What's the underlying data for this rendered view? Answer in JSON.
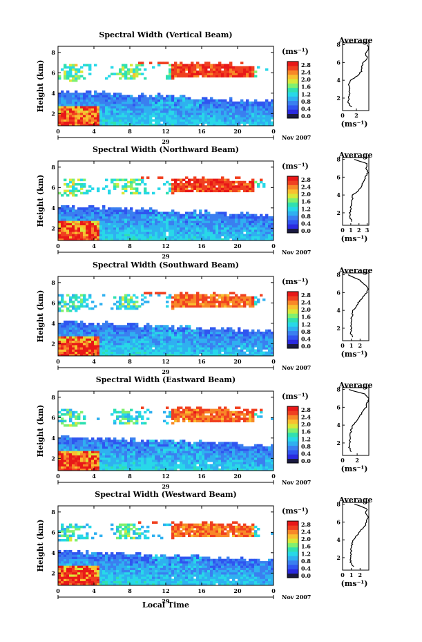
{
  "chart_data": {
    "type": "heatmap",
    "figure_xlabel": "Local Time",
    "colorbar": {
      "colors": [
        "#1a1a40",
        "#2a2ae0",
        "#2f55f0",
        "#3a7ff0",
        "#2fb0f0",
        "#28d8e8",
        "#30e0b0",
        "#80f070",
        "#d8e83a",
        "#f8c030",
        "#f88828",
        "#f04020",
        "#e81818"
      ]
    },
    "units_label": "(ms⁻¹)",
    "date_day": "29",
    "date_label": "Nov 2007",
    "x_ticks": [
      "0",
      "4",
      "8",
      "12",
      "16",
      "20",
      "0"
    ],
    "y_ticks": [
      "2",
      "4",
      "6",
      "8"
    ],
    "ylabel": "Height (km)",
    "avg_title": "Average",
    "avg_ylabel": "",
    "avg_xunit": "(ms⁻¹)",
    "panels": [
      {
        "title": "Spectral Width (Vertical Beam)",
        "colorbar_ticks": [
          "2.8",
          "2.4",
          "2.0",
          "1.6",
          "1.2",
          "0.8",
          "0.4",
          "0.0"
        ],
        "avg_x_ticks": [
          "0",
          "2"
        ],
        "avg_xlim": [
          0,
          3.8
        ],
        "avg_profile": {
          "height": [
            1.0,
            1.5,
            2.0,
            2.5,
            3.0,
            3.5,
            4.0,
            4.5,
            5.0,
            5.5,
            6.0,
            6.5,
            7.0,
            7.5,
            8.0
          ],
          "value": [
            1.3,
            0.8,
            0.9,
            1.0,
            1.0,
            0.9,
            1.1,
            2.2,
            2.7,
            2.8,
            3.0,
            3.6,
            3.3,
            3.8,
            3.6
          ]
        }
      },
      {
        "title": "Spectral Width (Northward Beam)",
        "colorbar_ticks": [
          "2.8",
          "2.4",
          "2.0",
          "1.6",
          "1.2",
          "0.8",
          "0.4",
          "0.0"
        ],
        "avg_x_ticks": [
          "0",
          "1",
          "2",
          "3"
        ],
        "avg_xlim": [
          0,
          3.2
        ],
        "avg_profile": {
          "height": [
            1.0,
            1.5,
            2.0,
            2.5,
            3.0,
            3.5,
            4.0,
            4.5,
            5.0,
            5.5,
            6.0,
            6.5,
            7.0,
            7.5,
            8.0
          ],
          "value": [
            1.1,
            0.9,
            0.9,
            1.0,
            1.1,
            1.2,
            1.2,
            2.0,
            2.3,
            2.6,
            2.8,
            3.1,
            2.9,
            3.0,
            1.4
          ]
        }
      },
      {
        "title": "Spectral Width (Southward Beam)",
        "colorbar_ticks": [
          "2.8",
          "2.4",
          "2.0",
          "1.6",
          "1.2",
          "0.8",
          "0.4",
          "0.0"
        ],
        "avg_x_ticks": [
          "0",
          "1",
          "2"
        ],
        "avg_xlim": [
          0,
          3.0
        ],
        "avg_profile": {
          "height": [
            1.0,
            1.5,
            2.0,
            2.5,
            3.0,
            3.5,
            4.0,
            4.5,
            5.0,
            5.5,
            6.0,
            6.5,
            7.0,
            7.5,
            8.0
          ],
          "value": [
            1.1,
            0.9,
            1.0,
            1.0,
            1.0,
            1.1,
            1.2,
            1.6,
            1.9,
            2.3,
            2.8,
            2.9,
            2.4,
            1.8,
            0.6
          ]
        }
      },
      {
        "title": "Spectral Width (Eastward Beam)",
        "colorbar_ticks": [
          "2.8",
          "2.4",
          "2.0",
          "1.6",
          "1.2",
          "0.8",
          "0.4",
          "0.0"
        ],
        "avg_x_ticks": [
          "0",
          "2"
        ],
        "avg_xlim": [
          0,
          3.6
        ],
        "avg_profile": {
          "height": [
            1.0,
            1.5,
            2.0,
            2.5,
            3.0,
            3.5,
            4.0,
            4.5,
            5.0,
            5.5,
            6.0,
            6.5,
            7.0,
            7.5,
            8.0
          ],
          "value": [
            1.2,
            0.9,
            1.0,
            1.0,
            1.1,
            1.2,
            1.4,
            2.0,
            2.3,
            2.8,
            3.2,
            3.4,
            3.6,
            3.1,
            0.8
          ]
        }
      },
      {
        "title": "Spectral Width (Westward Beam)",
        "colorbar_ticks": [
          "2.8",
          "2.4",
          "2.0",
          "1.6",
          "1.2",
          "0.8",
          "0.4",
          "0.0"
        ],
        "avg_x_ticks": [
          "0",
          "1",
          "2"
        ],
        "avg_xlim": [
          0,
          3.0
        ],
        "avg_profile": {
          "height": [
            1.0,
            1.5,
            2.0,
            2.5,
            3.0,
            3.5,
            4.0,
            4.5,
            5.0,
            5.5,
            6.0,
            6.5,
            7.0,
            7.5,
            8.0
          ],
          "value": [
            1.2,
            0.9,
            0.9,
            1.0,
            1.0,
            1.1,
            1.2,
            1.7,
            2.0,
            2.5,
            2.7,
            2.9,
            2.6,
            2.8,
            1.4
          ]
        }
      }
    ]
  }
}
